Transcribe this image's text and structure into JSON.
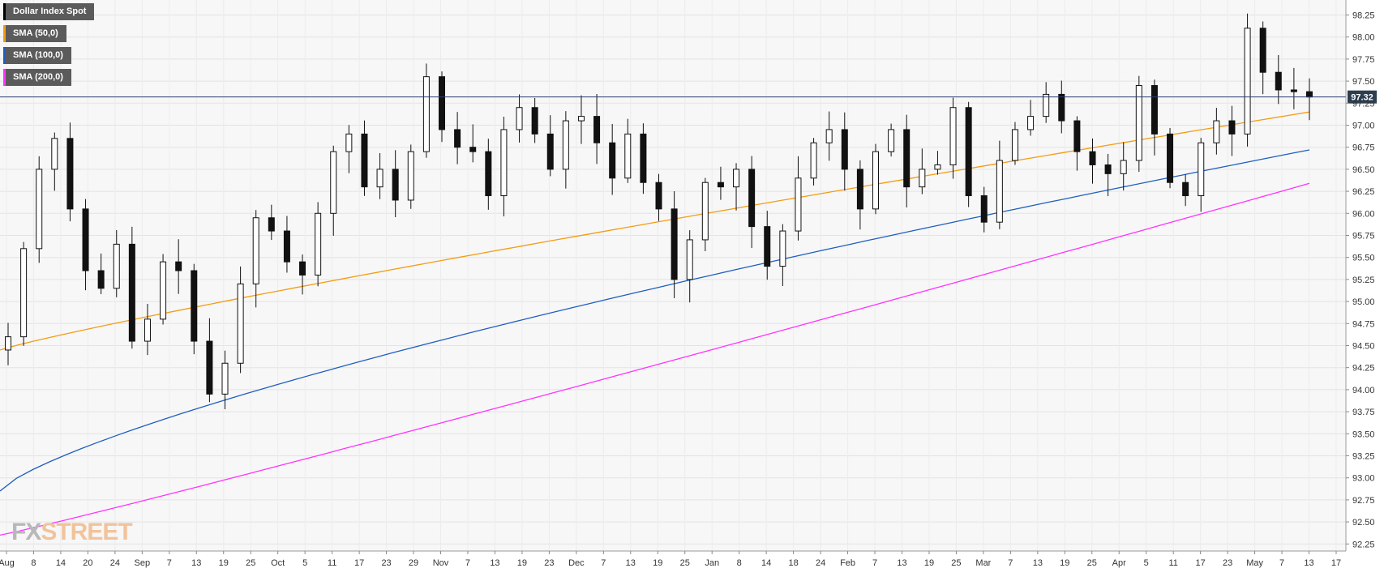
{
  "legend": [
    {
      "label": "Dollar Index Spot",
      "color": "#000000"
    },
    {
      "label": "SMA (50,0)",
      "color": "#f39c12"
    },
    {
      "label": "SMA (100,0)",
      "color": "#1f5fbf"
    },
    {
      "label": "SMA (200,0)",
      "color": "#ff33ff"
    }
  ],
  "logo": {
    "part1": "FX",
    "part2": "STREET"
  },
  "chart_data": {
    "type": "candlestick",
    "title": "",
    "price_label": "97.32",
    "last_price": 97.32,
    "ylim": [
      92.17,
      98.42
    ],
    "y_ticks": [
      "98.25",
      "98.00",
      "97.75",
      "97.50",
      "97.25",
      "97.00",
      "96.75",
      "96.50",
      "96.25",
      "96.00",
      "95.75",
      "95.50",
      "95.25",
      "95.00",
      "94.75",
      "94.50",
      "94.25",
      "94.00",
      "93.75",
      "93.50",
      "93.25",
      "93.00",
      "92.75",
      "92.50",
      "92.25"
    ],
    "x_ticks": [
      "Aug",
      "8",
      "14",
      "20",
      "24",
      "Sep",
      "7",
      "13",
      "19",
      "25",
      "Oct",
      "5",
      "11",
      "17",
      "23",
      "29",
      "Nov",
      "7",
      "13",
      "19",
      "23",
      "Dec",
      "7",
      "13",
      "19",
      "25",
      "Jan",
      "8",
      "14",
      "18",
      "24",
      "Feb",
      "7",
      "13",
      "19",
      "25",
      "Mar",
      "7",
      "13",
      "19",
      "25",
      "Apr",
      "5",
      "11",
      "17",
      "23",
      "May",
      "7",
      "13",
      "17"
    ],
    "candle_closes": [
      94.6,
      95.6,
      96.5,
      96.85,
      96.05,
      95.35,
      95.15,
      95.65,
      94.55,
      94.8,
      95.45,
      95.35,
      94.55,
      93.95,
      94.3,
      95.2,
      95.95,
      95.8,
      95.45,
      95.3,
      96.0,
      96.7,
      96.9,
      96.3,
      96.5,
      96.15,
      96.7,
      97.55,
      96.95,
      96.75,
      96.7,
      96.2,
      96.95,
      97.2,
      96.9,
      96.5,
      97.05,
      97.1,
      96.8,
      96.4,
      96.9,
      96.35,
      96.05,
      95.25,
      95.7,
      96.35,
      96.3,
      96.5,
      95.85,
      95.4,
      95.8,
      96.4,
      96.8,
      96.95,
      96.5,
      96.05,
      96.7,
      96.95,
      96.3,
      96.5,
      96.55,
      97.2,
      96.2,
      95.9,
      96.6,
      96.95,
      97.1,
      97.35,
      97.05,
      96.7,
      96.55,
      96.45,
      96.6,
      97.45,
      96.9,
      96.35,
      96.2,
      96.8,
      97.05,
      96.9,
      98.1,
      97.6,
      97.4,
      97.38,
      97.32
    ],
    "sma_50": "rising from 94.45 to 97.15",
    "sma_100": "rising from 92.85 to 96.72",
    "sma_200": "rising from 92.35 to 96.34"
  }
}
